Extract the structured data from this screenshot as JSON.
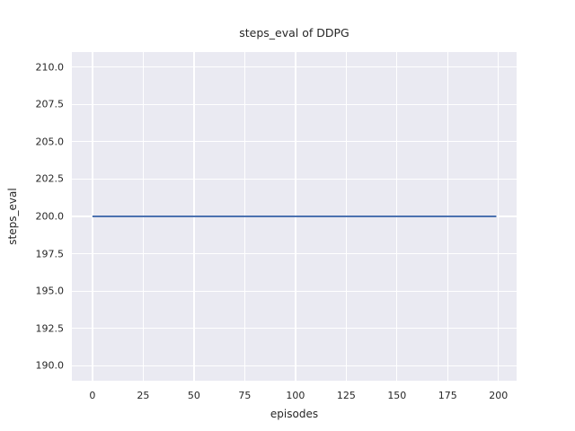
{
  "chart_data": {
    "type": "line",
    "title": "steps_eval of DDPG",
    "xlabel": "episodes",
    "ylabel": "steps_eval",
    "xlim": [
      -10.15,
      208.95
    ],
    "ylim": [
      189.0,
      211.0
    ],
    "x_ticks": [
      0,
      25,
      50,
      75,
      100,
      125,
      150,
      175,
      200
    ],
    "x_tick_labels": [
      "0",
      "25",
      "50",
      "75",
      "100",
      "125",
      "150",
      "175",
      "200"
    ],
    "y_ticks": [
      190.0,
      192.5,
      195.0,
      197.5,
      200.0,
      202.5,
      205.0,
      207.5,
      210.0
    ],
    "y_tick_labels": [
      "190.0",
      "192.5",
      "195.0",
      "197.5",
      "200.0",
      "202.5",
      "205.0",
      "207.5",
      "210.0"
    ],
    "grid": true,
    "legend_position": "none",
    "series": [
      {
        "x": [
          0,
          199
        ],
        "y": [
          200,
          200
        ],
        "color": "#4C72B0"
      }
    ],
    "colors": {
      "figure_background": "#FFFFFF",
      "axes_background": "#EAEAF2",
      "gridline": "#FFFFFF",
      "text": "#262626",
      "line": "#4C72B0"
    }
  }
}
